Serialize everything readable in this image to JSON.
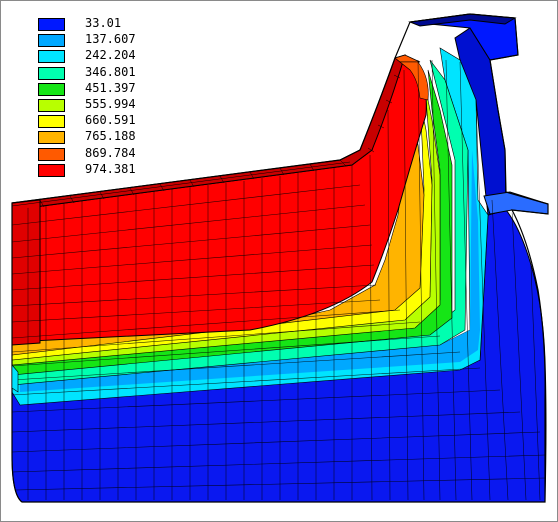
{
  "legend": {
    "entries": [
      {
        "label": "33.01",
        "color": "#0018ff"
      },
      {
        "label": "137.607",
        "color": "#00a8ff"
      },
      {
        "label": "242.204",
        "color": "#00e4ff"
      },
      {
        "label": "346.801",
        "color": "#00ffb0"
      },
      {
        "label": "451.397",
        "color": "#16e516"
      },
      {
        "label": "555.994",
        "color": "#b8ff00"
      },
      {
        "label": "660.591",
        "color": "#ffff00"
      },
      {
        "label": "765.188",
        "color": "#ffb400"
      },
      {
        "label": "869.784",
        "color": "#ff5a00"
      },
      {
        "label": "974.381",
        "color": "#ff0000"
      }
    ]
  },
  "colors": {
    "outline": "#000000",
    "mesh": "#000000",
    "background": "#ffffff",
    "refractory_base": "#0a18f0",
    "refractory_side": "#0000b8",
    "molten_top": "#c80000",
    "molten_front": "#ff0000"
  }
}
